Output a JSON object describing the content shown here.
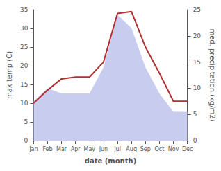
{
  "chart_data": {
    "type": "line",
    "xlabel": "date (month)",
    "ylabel": "max temp (C)",
    "y2label": "med. precipitation (kg/m2)",
    "categories": [
      "Jan",
      "Feb",
      "Mar",
      "Apr",
      "May",
      "Jun",
      "Jul",
      "Aug",
      "Sep",
      "Oct",
      "Nov",
      "Dec"
    ],
    "series": [
      {
        "type": "area",
        "axis": "y2",
        "color": "#b0b8e8",
        "values": [
          7.5,
          10,
          9,
          9,
          9,
          14,
          24,
          21.5,
          14,
          9,
          5.5,
          5.5
        ]
      },
      {
        "type": "line",
        "color": "#b03030",
        "values": [
          10,
          13.5,
          16.5,
          17,
          17,
          21,
          34,
          34.5,
          25,
          18,
          10.5,
          10.5
        ]
      }
    ],
    "ylim": [
      0,
      35
    ],
    "yticks": [
      0,
      5,
      10,
      15,
      20,
      25,
      30,
      35
    ],
    "y2lim": [
      0,
      25
    ],
    "y2ticks": [
      0,
      5,
      10,
      15,
      20,
      25
    ],
    "grid": false
  }
}
